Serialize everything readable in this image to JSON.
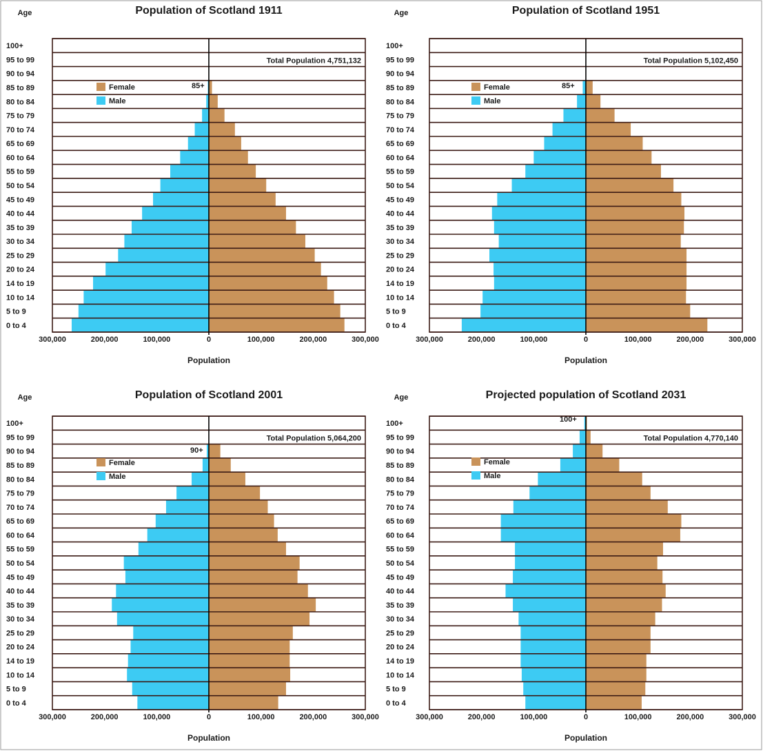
{
  "colors": {
    "female": "#c9935a",
    "male": "#3dcbf3",
    "grid": "#3b1a14"
  },
  "chart_data": [
    {
      "type": "bar",
      "orientation": "population-pyramid",
      "title": "Population of Scotland 1911",
      "age_header": "Age",
      "xlabel": "Population",
      "total_label": "Total Population 4,751,132",
      "top_marker": "85+",
      "legend": [
        "Female",
        "Male"
      ],
      "legend_placement": "upper-left",
      "xlim": [
        -300000,
        300000
      ],
      "x_ticks": [
        "300,000",
        "200,000",
        "100,000",
        "0",
        "100,000",
        "200,000",
        "300,000"
      ],
      "categories": [
        "0 to 4",
        "5 to 9",
        "10 to 14",
        "14 to 19",
        "20 to 24",
        "25 to 29",
        "30 to 34",
        "35 to 39",
        "40 to 44",
        "45 to 49",
        "50 to 54",
        "55 to 59",
        "60 to 64",
        "65 to 69",
        "70 to 74",
        "75 to 79",
        "80 to 84",
        "85 to 89",
        "90 to 94",
        "95 to 99",
        "100+"
      ],
      "series": [
        {
          "name": "Male",
          "values": [
            263000,
            250000,
            240000,
            222000,
            198000,
            174000,
            162000,
            148000,
            128000,
            107000,
            93000,
            74000,
            55000,
            40000,
            27000,
            13000,
            5000,
            2000,
            0,
            0,
            0
          ]
        },
        {
          "name": "Female",
          "values": [
            260000,
            252000,
            240000,
            227000,
            215000,
            203000,
            185000,
            167000,
            148000,
            128000,
            110000,
            90000,
            75000,
            62000,
            50000,
            30000,
            17000,
            6000,
            0,
            0,
            0
          ]
        }
      ]
    },
    {
      "type": "bar",
      "orientation": "population-pyramid",
      "title": "Population of Scotland 1951",
      "age_header": "Age",
      "xlabel": "Population",
      "total_label": "Total Population 5,102,450",
      "top_marker": "85+",
      "legend": [
        "Female",
        "Male"
      ],
      "legend_placement": "upper-left",
      "xlim": [
        -300000,
        300000
      ],
      "x_ticks": [
        "300,000",
        "200,000",
        "100,000",
        "0",
        "100,000",
        "200,000",
        "300,000"
      ],
      "categories": [
        "0 to 4",
        "5 to 9",
        "10 to 14",
        "14 to 19",
        "20 to 24",
        "25 to 29",
        "30 to 34",
        "35 to 39",
        "40 to 44",
        "45 to 49",
        "50 to 54",
        "55 to 59",
        "60 to 64",
        "65 to 69",
        "70 to 74",
        "75 to 79",
        "80 to 84",
        "85 to 89",
        "90 to 94",
        "95 to 99",
        "100+"
      ],
      "series": [
        {
          "name": "Male",
          "values": [
            238000,
            202000,
            198000,
            176000,
            177000,
            185000,
            167000,
            176000,
            180000,
            170000,
            142000,
            116000,
            100000,
            80000,
            64000,
            43000,
            17000,
            6000,
            0,
            0,
            0
          ]
        },
        {
          "name": "Female",
          "values": [
            233000,
            200000,
            192000,
            193000,
            193000,
            193000,
            182000,
            188000,
            189000,
            183000,
            168000,
            144000,
            126000,
            109000,
            86000,
            55000,
            28000,
            13000,
            0,
            0,
            0
          ]
        }
      ]
    },
    {
      "type": "bar",
      "orientation": "population-pyramid",
      "title": "Population of Scotland 2001",
      "age_header": "Age",
      "xlabel": "Population",
      "total_label": "Total Population 5,064,200",
      "top_marker": "90+",
      "legend": [
        "Female",
        "Male"
      ],
      "legend_placement": "upper-left",
      "xlim": [
        -300000,
        300000
      ],
      "x_ticks": [
        "300,000",
        "200,000",
        "100,000",
        "0",
        "100,000",
        "200,000",
        "300,000"
      ],
      "categories": [
        "0 to 4",
        "5 to 9",
        "10 to 14",
        "14 to 19",
        "20 to 24",
        "25 to 29",
        "30 to 34",
        "35 to 39",
        "40 to 44",
        "45 to 49",
        "50 to 54",
        "55 to 59",
        "60 to 64",
        "65 to 69",
        "70 to 74",
        "75 to 79",
        "80 to 84",
        "85 to 89",
        "90 to 94",
        "95 to 99",
        "100+"
      ],
      "series": [
        {
          "name": "Male",
          "values": [
            137000,
            147000,
            157000,
            155000,
            150000,
            145000,
            176000,
            186000,
            178000,
            160000,
            163000,
            135000,
            118000,
            102000,
            82000,
            62000,
            33000,
            12000,
            4000,
            0,
            0
          ]
        },
        {
          "name": "Female",
          "values": [
            133000,
            148000,
            156000,
            155000,
            155000,
            161000,
            193000,
            205000,
            190000,
            170000,
            174000,
            148000,
            132000,
            125000,
            113000,
            98000,
            70000,
            42000,
            22000,
            0,
            0
          ]
        }
      ]
    },
    {
      "type": "bar",
      "orientation": "population-pyramid",
      "title": "Projected population of Scotland 2031",
      "age_header": "Age",
      "xlabel": "Population",
      "total_label": "Total Population 4,770,140",
      "top_marker": "100+",
      "legend": [
        "Female",
        "Male"
      ],
      "legend_placement": "upper-left",
      "xlim": [
        -300000,
        300000
      ],
      "x_ticks": [
        "300,000",
        "200,000",
        "100,000",
        "0",
        "100,000",
        "200,000",
        "300,000"
      ],
      "categories": [
        "0 to 4",
        "5 to 9",
        "10 to 14",
        "14 to 19",
        "20 to 24",
        "25 to 29",
        "30 to 34",
        "35 to 39",
        "40 to 44",
        "45 to 49",
        "50 to 54",
        "55 to 59",
        "60 to 64",
        "65 to 69",
        "70 to 74",
        "75 to 79",
        "80 to 84",
        "85 to 89",
        "90 to 94",
        "95 to 99",
        "100+"
      ],
      "series": [
        {
          "name": "Male",
          "values": [
            116000,
            120000,
            123000,
            125000,
            125000,
            125000,
            129000,
            140000,
            154000,
            140000,
            136000,
            136000,
            163000,
            163000,
            139000,
            108000,
            92000,
            49000,
            25000,
            12000,
            3000
          ]
        },
        {
          "name": "Female",
          "values": [
            107000,
            114000,
            116000,
            116000,
            124000,
            124000,
            133000,
            146000,
            153000,
            147000,
            137000,
            148000,
            181000,
            183000,
            157000,
            124000,
            108000,
            64000,
            32000,
            9000,
            2000
          ]
        }
      ]
    }
  ]
}
